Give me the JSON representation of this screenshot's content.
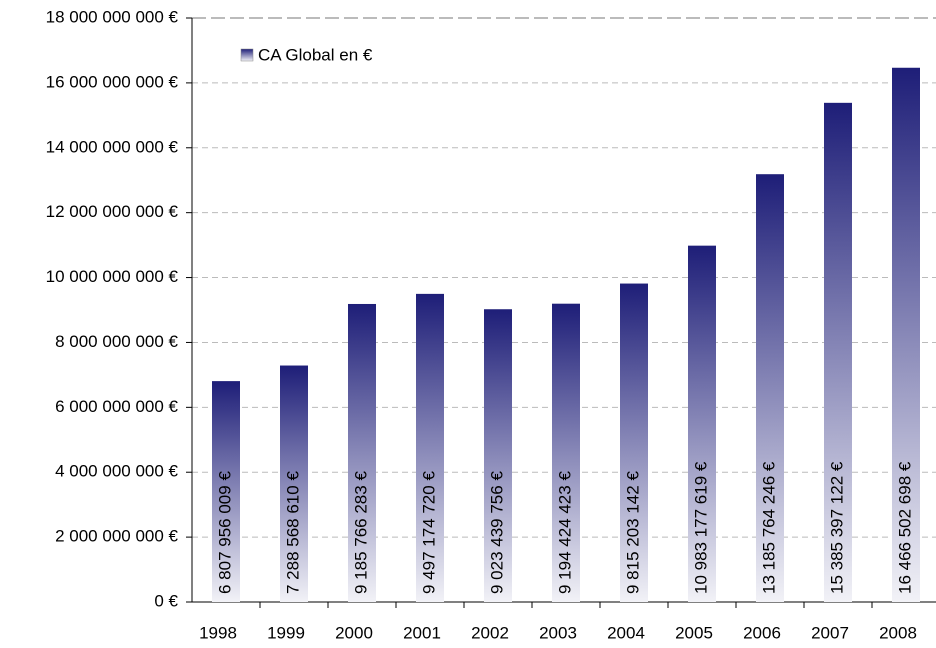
{
  "chart_data": {
    "type": "bar",
    "categories": [
      "1998",
      "1999",
      "2000",
      "2001",
      "2002",
      "2003",
      "2004",
      "2005",
      "2006",
      "2007",
      "2008"
    ],
    "series": [
      {
        "name": "CA Global en €",
        "color": "#1e1e78",
        "values": [
          6807956009,
          7288568610,
          9185766283,
          9497174720,
          9023439756,
          9194424423,
          9815203142,
          10983177619,
          13185764246,
          15385397122,
          16466502698
        ],
        "value_labels": [
          "6 807 956 009 €",
          "7 288 568 610 €",
          "9 185 766 283 €",
          "9 497 174 720 €",
          "9 023 439 756 €",
          "9 194 424 423 €",
          "9 815 203 142 €",
          "10 983 177 619 €",
          "13 185 764 246 €",
          "15 385 397 122 €",
          "16 466 502 698 €"
        ]
      }
    ],
    "ylim": [
      0,
      18000000000
    ],
    "yticks": [
      {
        "value": 0,
        "label": "0 €"
      },
      {
        "value": 2000000000,
        "label": "2 000 000 000 €"
      },
      {
        "value": 4000000000,
        "label": "4 000 000 000 €"
      },
      {
        "value": 6000000000,
        "label": "6 000 000 000 €"
      },
      {
        "value": 8000000000,
        "label": "8 000 000 000 €"
      },
      {
        "value": 10000000000,
        "label": "10 000 000 000 €"
      },
      {
        "value": 12000000000,
        "label": "12 000 000 000 €"
      },
      {
        "value": 14000000000,
        "label": "14 000 000 000 €"
      },
      {
        "value": 16000000000,
        "label": "16 000 000 000 €"
      },
      {
        "value": 18000000000,
        "label": "18 000 000 000 €"
      }
    ],
    "grid": true,
    "legend": "top-left"
  }
}
